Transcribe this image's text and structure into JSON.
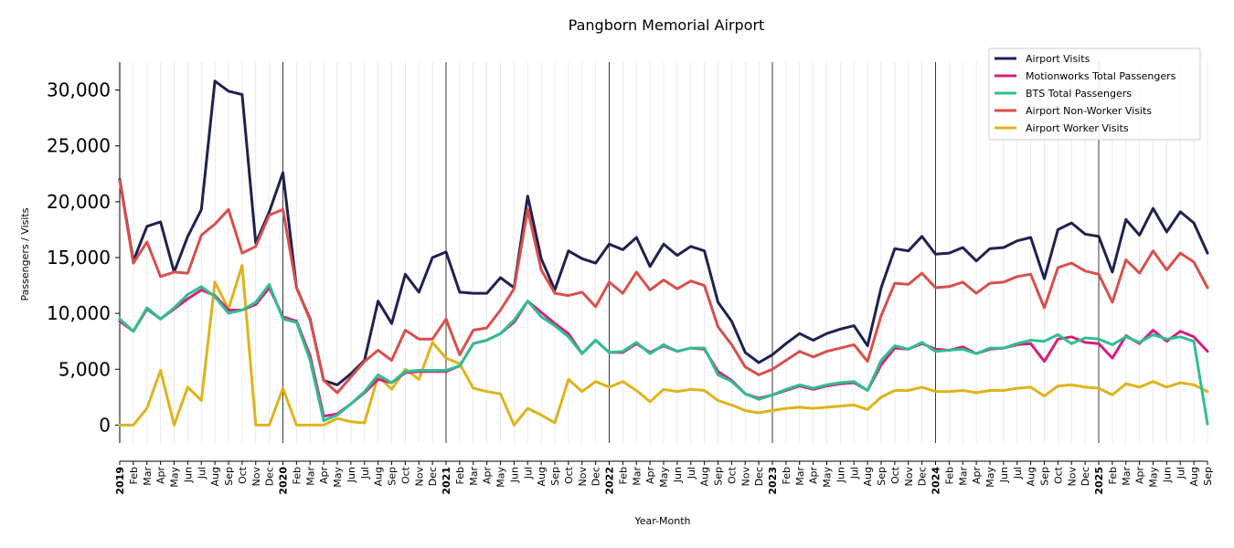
{
  "chart_data": {
    "type": "line",
    "title": "Pangborn Memorial Airport",
    "xlabel": "Year-Month",
    "ylabel": "Passengers / Visits",
    "ylim": [
      -1600,
      32500
    ],
    "yticks": [
      0,
      5000,
      10000,
      15000,
      20000,
      25000,
      30000
    ],
    "ytick_labels": [
      "0",
      "5,000",
      "10,000",
      "15,000",
      "20,000",
      "25,000",
      "30,000"
    ],
    "grid": "vertical monthly; dark lines at year boundaries",
    "legend_position": "top-right",
    "x": [
      "2019",
      "Feb",
      "Mar",
      "Apr",
      "May",
      "Jun",
      "Jul",
      "Aug",
      "Sep",
      "Oct",
      "Nov",
      "Dec",
      "2020",
      "Feb",
      "Mar",
      "Apr",
      "May",
      "Jun",
      "Jul",
      "Aug",
      "Sep",
      "Oct",
      "Nov",
      "Dec",
      "2021",
      "Feb",
      "Mar",
      "Apr",
      "May",
      "Jun",
      "Jul",
      "Aug",
      "Sep",
      "Oct",
      "Nov",
      "Dec",
      "2022",
      "Feb",
      "Mar",
      "Apr",
      "May",
      "Jun",
      "Jul",
      "Aug",
      "Sep",
      "Oct",
      "Nov",
      "Dec",
      "2023",
      "Feb",
      "Mar",
      "Apr",
      "May",
      "Jun",
      "Jul",
      "Aug",
      "Sep",
      "Oct",
      "Nov",
      "Dec",
      "2024",
      "Feb",
      "Mar",
      "Apr",
      "May",
      "Jun",
      "Jul",
      "Aug",
      "Sep",
      "Oct",
      "Nov",
      "Dec",
      "2025",
      "Feb",
      "Mar",
      "Apr",
      "May",
      "Jun",
      "Jul",
      "Aug",
      "Sep"
    ],
    "year_label_indices": [
      0,
      12,
      24,
      36,
      48,
      60,
      72
    ],
    "series": [
      {
        "name": "Airport Visits",
        "color": "#1f2150",
        "values": [
          22000,
          14700,
          17800,
          18200,
          13700,
          16900,
          19300,
          30800,
          29900,
          29600,
          16300,
          19100,
          22600,
          12300,
          9500,
          4000,
          3600,
          4600,
          5800,
          11100,
          9100,
          13500,
          11900,
          15000,
          15500,
          11900,
          11800,
          11800,
          13200,
          12300,
          20500,
          14900,
          12100,
          15600,
          14900,
          14500,
          16200,
          15700,
          16800,
          14200,
          16200,
          15200,
          16000,
          15600,
          11000,
          9300,
          6500,
          5600,
          6300,
          7300,
          8200,
          7600,
          8200,
          8600,
          8900,
          7100,
          12300,
          15800,
          15600,
          16900,
          15300,
          15400,
          15900,
          14700,
          15800,
          15900,
          16500,
          16800,
          13100,
          17500,
          18100,
          17100,
          16900,
          13700,
          18400,
          17000,
          19400,
          17300,
          19100,
          18100,
          15400
        ]
      },
      {
        "name": "Motionworks Total Passengers",
        "color": "#d51e82",
        "values": [
          9300,
          8400,
          10400,
          9500,
          10400,
          11300,
          12100,
          11600,
          10300,
          10300,
          10800,
          12300,
          9700,
          9300,
          6200,
          800,
          1000,
          1900,
          2900,
          4100,
          3800,
          4700,
          4800,
          4800,
          4800,
          5300,
          7300,
          7600,
          8200,
          9200,
          11100,
          10100,
          9100,
          8200,
          6400,
          7600,
          6500,
          6500,
          7300,
          6500,
          7100,
          6600,
          6900,
          6800,
          4800,
          4000,
          2800,
          2400,
          2700,
          3100,
          3500,
          3200,
          3500,
          3700,
          3800,
          3100,
          5400,
          6900,
          6800,
          7300,
          6800,
          6700,
          7000,
          6400,
          6800,
          6900,
          7200,
          7300,
          5700,
          7700,
          7900,
          7400,
          7300,
          6000,
          8000,
          7300,
          8500,
          7500,
          8400,
          7900,
          6600
        ]
      },
      {
        "name": "BTS Total Passengers",
        "color": "#2ebf91",
        "values": [
          9500,
          8400,
          10500,
          9500,
          10500,
          11700,
          12400,
          11500,
          10000,
          10300,
          11000,
          12600,
          9500,
          9200,
          5800,
          400,
          900,
          1900,
          3000,
          4500,
          3800,
          4800,
          4900,
          4900,
          4900,
          5300,
          7300,
          7600,
          8200,
          9400,
          11100,
          9700,
          8900,
          7900,
          6400,
          7600,
          6500,
          6600,
          7400,
          6400,
          7200,
          6600,
          6900,
          6900,
          4500,
          3900,
          2800,
          2300,
          2700,
          3200,
          3600,
          3300,
          3600,
          3800,
          3900,
          3100,
          5800,
          7100,
          6800,
          7400,
          6600,
          6700,
          6800,
          6400,
          6900,
          6900,
          7300,
          7600,
          7500,
          8100,
          7300,
          7800,
          7700,
          7200,
          7900,
          7400,
          8100,
          7700,
          7900,
          7500,
          100
        ]
      },
      {
        "name": "Airport Non-Worker Visits",
        "color": "#d84f4c",
        "values": [
          21900,
          14500,
          16400,
          13300,
          13700,
          13600,
          17000,
          18000,
          19300,
          15400,
          16000,
          18800,
          19300,
          12300,
          9400,
          4000,
          2900,
          4300,
          5700,
          6700,
          5800,
          8500,
          7700,
          7700,
          9500,
          6300,
          8500,
          8700,
          10300,
          12200,
          19300,
          13900,
          11800,
          11600,
          11900,
          10600,
          12800,
          11800,
          13700,
          12100,
          13000,
          12200,
          12900,
          12500,
          8800,
          7200,
          5200,
          4500,
          5000,
          5800,
          6600,
          6100,
          6600,
          6900,
          7200,
          5700,
          9800,
          12700,
          12600,
          13600,
          12300,
          12400,
          12800,
          11800,
          12700,
          12800,
          13300,
          13500,
          10500,
          14100,
          14500,
          13800,
          13500,
          11000,
          14800,
          13600,
          15600,
          13900,
          15400,
          14600,
          12300
        ]
      },
      {
        "name": "Airport Worker Visits",
        "color": "#dfb31a",
        "values": [
          0,
          0,
          1500,
          4900,
          0,
          3400,
          2200,
          12800,
          10400,
          14300,
          0,
          0,
          3300,
          0,
          0,
          0,
          600,
          300,
          200,
          4400,
          3200,
          5000,
          4100,
          7400,
          6000,
          5500,
          3300,
          3000,
          2800,
          0,
          1500,
          900,
          200,
          4100,
          3000,
          3900,
          3400,
          3900,
          3100,
          2100,
          3200,
          3000,
          3200,
          3100,
          2200,
          1800,
          1300,
          1100,
          1300,
          1500,
          1600,
          1500,
          1600,
          1700,
          1800,
          1400,
          2500,
          3100,
          3100,
          3400,
          3000,
          3000,
          3100,
          2900,
          3100,
          3100,
          3300,
          3400,
          2600,
          3500,
          3600,
          3400,
          3300,
          2700,
          3700,
          3400,
          3900,
          3400,
          3800,
          3600,
          3000
        ]
      }
    ]
  }
}
